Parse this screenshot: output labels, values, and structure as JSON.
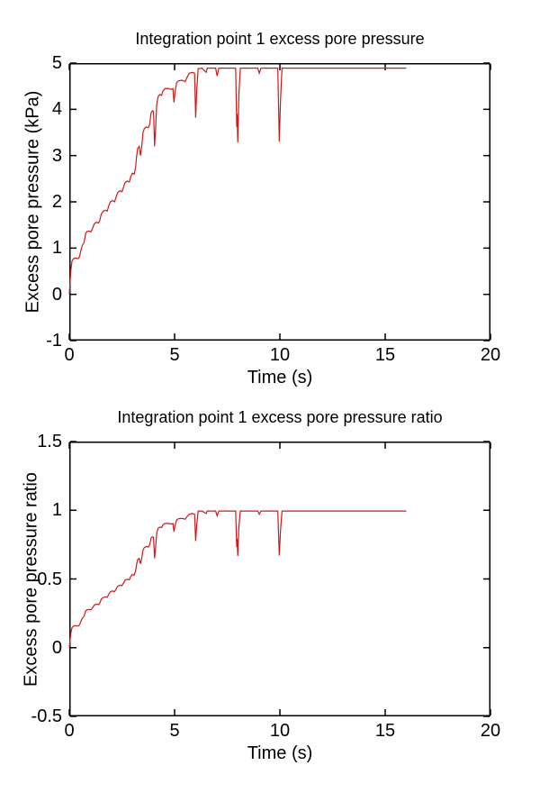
{
  "chart_data": [
    {
      "type": "line",
      "title": "Integration point 1 excess pore pressure",
      "xlabel": "Time (s)",
      "ylabel": "Excess pore pressure (kPa)",
      "xlim": [
        0,
        20
      ],
      "ylim": [
        -1,
        5
      ],
      "xticks": [
        0,
        5,
        10,
        15,
        20
      ],
      "yticks": [
        -1,
        0,
        1,
        2,
        3,
        4,
        5
      ],
      "grid": false,
      "legend": "none",
      "line_color": "#d01818",
      "series": [
        {
          "name": "excess pore pressure",
          "points": [
            [
              0,
              0
            ],
            [
              0.04,
              0.3
            ],
            [
              0.08,
              0.55
            ],
            [
              0.13,
              0.72
            ],
            [
              0.2,
              0.77
            ],
            [
              0.3,
              0.79
            ],
            [
              0.38,
              0.77
            ],
            [
              0.45,
              0.78
            ],
            [
              0.5,
              0.84
            ],
            [
              0.55,
              0.95
            ],
            [
              0.62,
              1.06
            ],
            [
              0.7,
              1.12
            ],
            [
              0.78,
              1.32
            ],
            [
              0.85,
              1.36
            ],
            [
              0.95,
              1.37
            ],
            [
              1.02,
              1.35
            ],
            [
              1.1,
              1.42
            ],
            [
              1.18,
              1.52
            ],
            [
              1.28,
              1.56
            ],
            [
              1.38,
              1.54
            ],
            [
              1.45,
              1.6
            ],
            [
              1.52,
              1.74
            ],
            [
              1.62,
              1.8
            ],
            [
              1.72,
              1.82
            ],
            [
              1.8,
              1.8
            ],
            [
              1.88,
              1.92
            ],
            [
              1.95,
              2.0
            ],
            [
              2.05,
              2.03
            ],
            [
              2.15,
              2.0
            ],
            [
              2.22,
              2.1
            ],
            [
              2.3,
              2.2
            ],
            [
              2.4,
              2.24
            ],
            [
              2.5,
              2.22
            ],
            [
              2.58,
              2.32
            ],
            [
              2.65,
              2.42
            ],
            [
              2.75,
              2.45
            ],
            [
              2.85,
              2.43
            ],
            [
              2.92,
              2.55
            ],
            [
              3.0,
              2.62
            ],
            [
              3.08,
              2.6
            ],
            [
              3.15,
              2.75
            ],
            [
              3.2,
              3.0
            ],
            [
              3.25,
              3.16
            ],
            [
              3.32,
              3.2
            ],
            [
              3.38,
              3.0
            ],
            [
              3.44,
              3.2
            ],
            [
              3.5,
              3.5
            ],
            [
              3.56,
              3.58
            ],
            [
              3.65,
              3.62
            ],
            [
              3.75,
              3.6
            ],
            [
              3.82,
              3.68
            ],
            [
              3.88,
              3.92
            ],
            [
              3.95,
              3.97
            ],
            [
              4.0,
              3.95
            ],
            [
              4.05,
              3.2
            ],
            [
              4.1,
              3.6
            ],
            [
              4.15,
              4.1
            ],
            [
              4.22,
              4.28
            ],
            [
              4.3,
              4.32
            ],
            [
              4.38,
              4.3
            ],
            [
              4.45,
              4.4
            ],
            [
              4.55,
              4.45
            ],
            [
              4.7,
              4.45
            ],
            [
              4.85,
              4.43
            ],
            [
              4.92,
              4.45
            ],
            [
              4.97,
              4.15
            ],
            [
              5.03,
              4.4
            ],
            [
              5.1,
              4.58
            ],
            [
              5.2,
              4.62
            ],
            [
              5.35,
              4.63
            ],
            [
              5.5,
              4.6
            ],
            [
              5.6,
              4.7
            ],
            [
              5.7,
              4.78
            ],
            [
              5.85,
              4.8
            ],
            [
              5.95,
              4.78
            ],
            [
              6.0,
              3.82
            ],
            [
              6.05,
              4.4
            ],
            [
              6.12,
              4.88
            ],
            [
              6.3,
              4.89
            ],
            [
              6.5,
              4.8
            ],
            [
              6.55,
              4.89
            ],
            [
              6.95,
              4.89
            ],
            [
              7.02,
              4.72
            ],
            [
              7.1,
              4.89
            ],
            [
              7.9,
              4.89
            ],
            [
              7.95,
              3.62
            ],
            [
              7.97,
              3.9
            ],
            [
              8.0,
              3.28
            ],
            [
              8.05,
              4.3
            ],
            [
              8.12,
              4.89
            ],
            [
              8.95,
              4.89
            ],
            [
              9.02,
              4.78
            ],
            [
              9.1,
              4.89
            ],
            [
              9.9,
              4.89
            ],
            [
              9.97,
              3.3
            ],
            [
              10.03,
              4.2
            ],
            [
              10.1,
              4.89
            ],
            [
              16,
              4.89
            ]
          ]
        }
      ]
    },
    {
      "type": "line",
      "title": "Integration point 1 excess pore pressure ratio",
      "xlabel": "Time (s)",
      "ylabel": "Excess pore pressure ratio",
      "xlim": [
        0,
        20
      ],
      "ylim": [
        -0.5,
        1.5
      ],
      "xticks": [
        0,
        5,
        10,
        15,
        20
      ],
      "yticks": [
        -0.5,
        0,
        0.5,
        1,
        1.5
      ],
      "grid": false,
      "legend": "none",
      "line_color": "#d01818",
      "series": [
        {
          "name": "excess pore pressure ratio",
          "points": [
            [
              0,
              0
            ],
            [
              0.04,
              0.061
            ],
            [
              0.08,
              0.112
            ],
            [
              0.13,
              0.146
            ],
            [
              0.2,
              0.157
            ],
            [
              0.3,
              0.161
            ],
            [
              0.38,
              0.157
            ],
            [
              0.45,
              0.159
            ],
            [
              0.5,
              0.171
            ],
            [
              0.55,
              0.193
            ],
            [
              0.62,
              0.215
            ],
            [
              0.7,
              0.228
            ],
            [
              0.78,
              0.268
            ],
            [
              0.85,
              0.276
            ],
            [
              0.95,
              0.278
            ],
            [
              1.02,
              0.274
            ],
            [
              1.1,
              0.289
            ],
            [
              1.18,
              0.309
            ],
            [
              1.28,
              0.317
            ],
            [
              1.38,
              0.313
            ],
            [
              1.45,
              0.325
            ],
            [
              1.52,
              0.354
            ],
            [
              1.62,
              0.366
            ],
            [
              1.72,
              0.37
            ],
            [
              1.8,
              0.366
            ],
            [
              1.88,
              0.39
            ],
            [
              1.95,
              0.407
            ],
            [
              2.05,
              0.413
            ],
            [
              2.15,
              0.407
            ],
            [
              2.22,
              0.427
            ],
            [
              2.3,
              0.447
            ],
            [
              2.4,
              0.455
            ],
            [
              2.5,
              0.451
            ],
            [
              2.58,
              0.472
            ],
            [
              2.65,
              0.492
            ],
            [
              2.75,
              0.498
            ],
            [
              2.85,
              0.494
            ],
            [
              2.92,
              0.518
            ],
            [
              3.0,
              0.533
            ],
            [
              3.08,
              0.528
            ],
            [
              3.15,
              0.559
            ],
            [
              3.2,
              0.61
            ],
            [
              3.25,
              0.642
            ],
            [
              3.32,
              0.65
            ],
            [
              3.38,
              0.61
            ],
            [
              3.44,
              0.65
            ],
            [
              3.5,
              0.711
            ],
            [
              3.56,
              0.728
            ],
            [
              3.65,
              0.736
            ],
            [
              3.75,
              0.732
            ],
            [
              3.82,
              0.748
            ],
            [
              3.88,
              0.797
            ],
            [
              3.95,
              0.807
            ],
            [
              4.0,
              0.803
            ],
            [
              4.05,
              0.65
            ],
            [
              4.1,
              0.732
            ],
            [
              4.15,
              0.833
            ],
            [
              4.22,
              0.87
            ],
            [
              4.3,
              0.878
            ],
            [
              4.38,
              0.874
            ],
            [
              4.45,
              0.894
            ],
            [
              4.55,
              0.904
            ],
            [
              4.7,
              0.904
            ],
            [
              4.85,
              0.9
            ],
            [
              4.92,
              0.904
            ],
            [
              4.97,
              0.843
            ],
            [
              5.03,
              0.894
            ],
            [
              5.1,
              0.931
            ],
            [
              5.2,
              0.939
            ],
            [
              5.35,
              0.941
            ],
            [
              5.5,
              0.935
            ],
            [
              5.6,
              0.955
            ],
            [
              5.7,
              0.971
            ],
            [
              5.85,
              0.976
            ],
            [
              5.95,
              0.971
            ],
            [
              6.0,
              0.776
            ],
            [
              6.05,
              0.894
            ],
            [
              6.12,
              0.994
            ],
            [
              6.3,
              0.994
            ],
            [
              6.5,
              0.976
            ],
            [
              6.55,
              0.994
            ],
            [
              6.95,
              0.994
            ],
            [
              7.02,
              0.959
            ],
            [
              7.1,
              0.994
            ],
            [
              7.9,
              0.994
            ],
            [
              7.95,
              0.732
            ],
            [
              7.97,
              0.793
            ],
            [
              8.0,
              0.667
            ],
            [
              8.05,
              0.874
            ],
            [
              8.12,
              0.994
            ],
            [
              8.95,
              0.994
            ],
            [
              9.02,
              0.971
            ],
            [
              9.1,
              0.994
            ],
            [
              9.9,
              0.994
            ],
            [
              9.97,
              0.671
            ],
            [
              10.03,
              0.854
            ],
            [
              10.1,
              0.994
            ],
            [
              16,
              0.994
            ]
          ]
        }
      ]
    }
  ],
  "style": {
    "axis_color": "#000000",
    "background": "#ffffff"
  },
  "layout_note": "two stacked MATLAB-style subplots"
}
